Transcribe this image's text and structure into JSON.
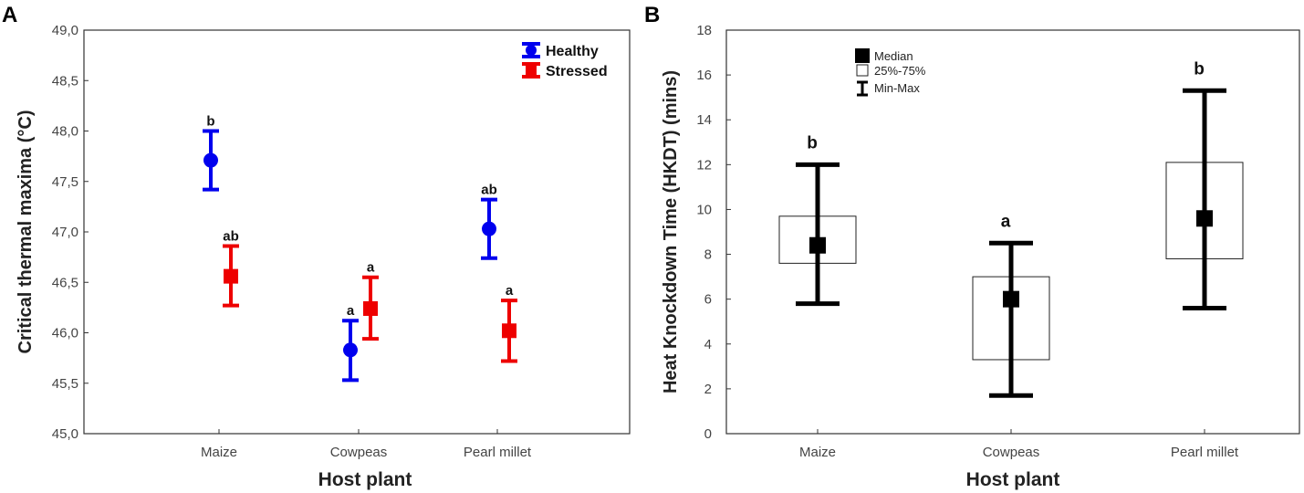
{
  "chart_data": [
    {
      "panel": "A",
      "type": "scatter",
      "ylabel": "Critical thermal maxima (°C)",
      "xlabel": "Host plant",
      "ylim": [
        45.0,
        49.0
      ],
      "yticks": [
        "45,0",
        "45,5",
        "46,0",
        "46,5",
        "47,0",
        "47,5",
        "48,0",
        "48,5",
        "49,0"
      ],
      "categories": [
        "Maize",
        "Cowpeas",
        "Pearl millet"
      ],
      "series": [
        {
          "name": "Healthy",
          "color": "#0000ee",
          "marker": "circle",
          "points": [
            {
              "category": "Maize",
              "mean": 47.71,
              "low": 47.42,
              "high": 48.0,
              "label": "b"
            },
            {
              "category": "Cowpeas",
              "mean": 45.83,
              "low": 45.53,
              "high": 46.12,
              "label": "a"
            },
            {
              "category": "Pearl millet",
              "mean": 47.03,
              "low": 46.74,
              "high": 47.32,
              "label": "ab"
            }
          ]
        },
        {
          "name": "Stressed",
          "color": "#ee0000",
          "marker": "square",
          "points": [
            {
              "category": "Maize",
              "mean": 46.56,
              "low": 46.27,
              "high": 46.86,
              "label": "ab"
            },
            {
              "category": "Cowpeas",
              "mean": 46.24,
              "low": 45.94,
              "high": 46.55,
              "label": "a"
            },
            {
              "category": "Pearl millet",
              "mean": 46.02,
              "low": 45.72,
              "high": 46.32,
              "label": "a"
            }
          ]
        }
      ],
      "legend": {
        "position": "top-right",
        "items": [
          "Healthy",
          "Stressed"
        ]
      }
    },
    {
      "panel": "B",
      "type": "box",
      "ylabel": "Heat Knockdown Time (HKDT) (mins)",
      "xlabel": "Host plant",
      "ylim": [
        0,
        18
      ],
      "yticks": [
        "0",
        "2",
        "4",
        "6",
        "8",
        "10",
        "12",
        "14",
        "16",
        "18"
      ],
      "categories": [
        "Maize",
        "Cowpeas",
        "Pearl millet"
      ],
      "boxes": [
        {
          "category": "Maize",
          "median": 8.4,
          "q1": 7.6,
          "q3": 9.7,
          "min": 5.8,
          "max": 12.0,
          "label": "b"
        },
        {
          "category": "Cowpeas",
          "median": 6.0,
          "q1": 3.3,
          "q3": 7.0,
          "min": 1.7,
          "max": 8.5,
          "label": "a"
        },
        {
          "category": "Pearl millet",
          "median": 9.6,
          "q1": 7.8,
          "q3": 12.1,
          "min": 5.6,
          "max": 15.3,
          "label": "b"
        }
      ],
      "legend": {
        "position": "top-left",
        "items": [
          "Median",
          "25%-75%",
          "Min-Max"
        ]
      }
    }
  ]
}
